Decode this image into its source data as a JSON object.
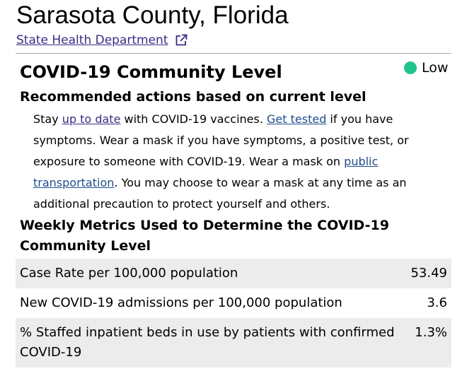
{
  "header": {
    "county_title": "Sarasota County, Florida",
    "dept_link": "State Health Department"
  },
  "community_level": {
    "title": "COVID-19 Community Level",
    "level": "Low",
    "level_color": "#21c48e"
  },
  "recommendations": {
    "heading": "Recommended actions based on current level",
    "p1": "Stay ",
    "link_up_to_date": "up to date",
    "p2": " with COVID-19 vaccines. ",
    "link_get_tested": "Get tested",
    "p3": " if you have symptoms. Wear a mask if you have symptoms, a positive test, or exposure to someone with COVID-19. Wear a mask on ",
    "link_public_transportation": "public transportation",
    "p4": ". You may choose to wear a mask at any time as an additional precaution to protect yourself and others."
  },
  "metrics": {
    "heading": "Weekly Metrics Used to Determine the COVID-19 Community Level",
    "rows": [
      {
        "label": "Case Rate per 100,000 population",
        "value": "53.49"
      },
      {
        "label": "New COVID-19 admissions per 100,000 population",
        "value": "3.6"
      },
      {
        "label": "% Staffed inpatient beds in use by patients with confirmed COVID-19",
        "value": "1.3%"
      }
    ]
  }
}
